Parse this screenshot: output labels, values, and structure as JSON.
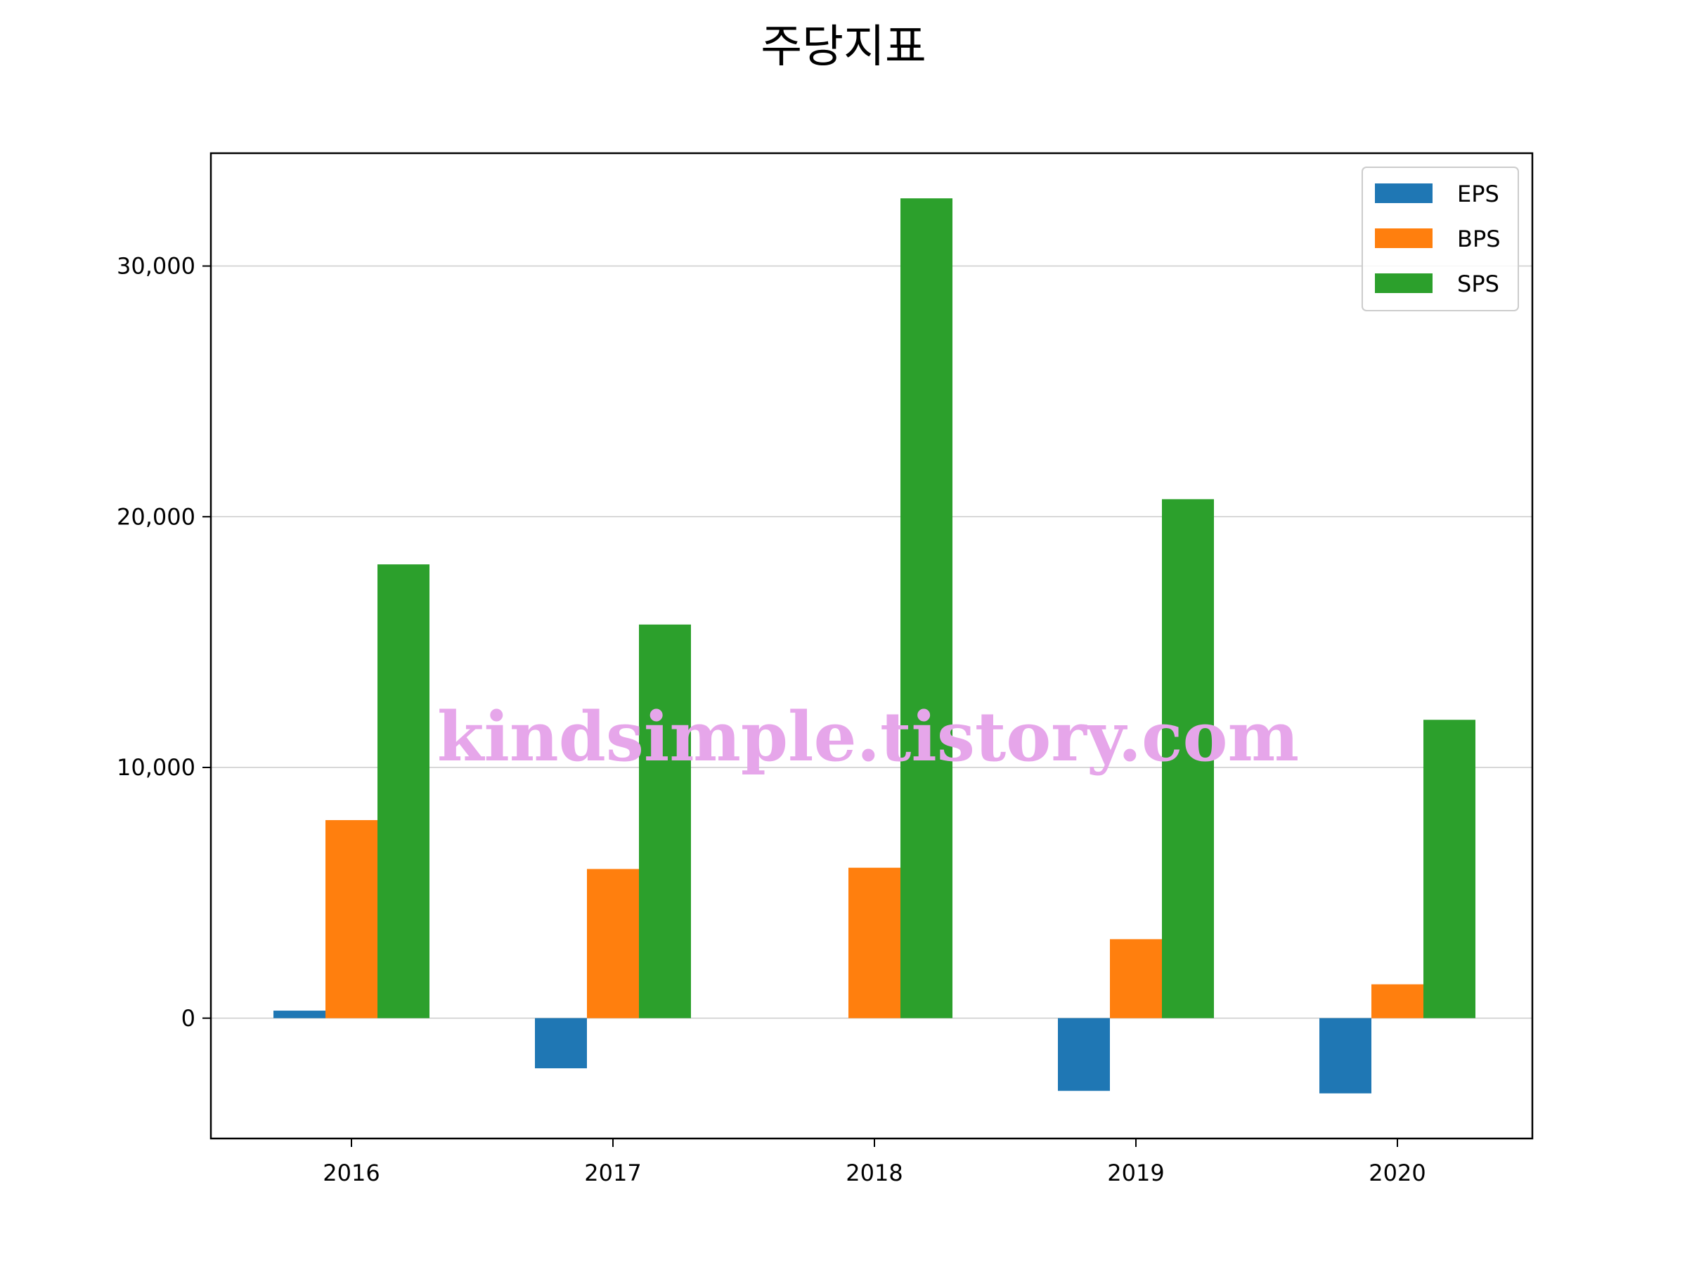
{
  "chart_data": {
    "type": "bar",
    "title": "주당지표",
    "categories": [
      "2016",
      "2017",
      "2018",
      "2019",
      "2020"
    ],
    "series": [
      {
        "name": "EPS",
        "color": "#1f77b4",
        "values": [
          300,
          -2000,
          0,
          -2900,
          -3000
        ]
      },
      {
        "name": "BPS",
        "color": "#ff7f0e",
        "values": [
          7900,
          5950,
          6000,
          3150,
          1350
        ]
      },
      {
        "name": "SPS",
        "color": "#2ca02c",
        "values": [
          18100,
          15700,
          32700,
          20700,
          11900
        ]
      }
    ],
    "xlabel": "",
    "ylabel": "",
    "ylim": [
      -4800,
      34500
    ],
    "yticks": [
      0,
      10000,
      20000,
      30000
    ],
    "ytick_labels": [
      "0",
      "10,000",
      "20,000",
      "30,000"
    ],
    "grid": "horizontal",
    "legend_position": "top-right"
  },
  "watermark": "kindsimple.tistory.com"
}
